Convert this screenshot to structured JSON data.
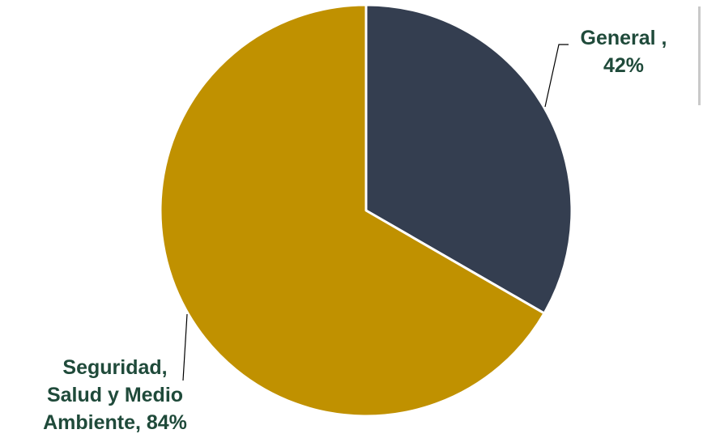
{
  "chart_data": {
    "type": "pie",
    "title": "",
    "slices": [
      {
        "label_lines": [
          "General ,",
          "42%"
        ],
        "category": "General",
        "value": 42,
        "color": "#343e50"
      },
      {
        "label_lines": [
          "Seguridad,",
          "Salud y Medio",
          "Ambiente, 84%"
        ],
        "category": "Seguridad, Salud y Medio Ambiente",
        "value": 84,
        "color": "#c09100"
      }
    ],
    "label_color": "#1f4a3a",
    "legend": "none"
  }
}
